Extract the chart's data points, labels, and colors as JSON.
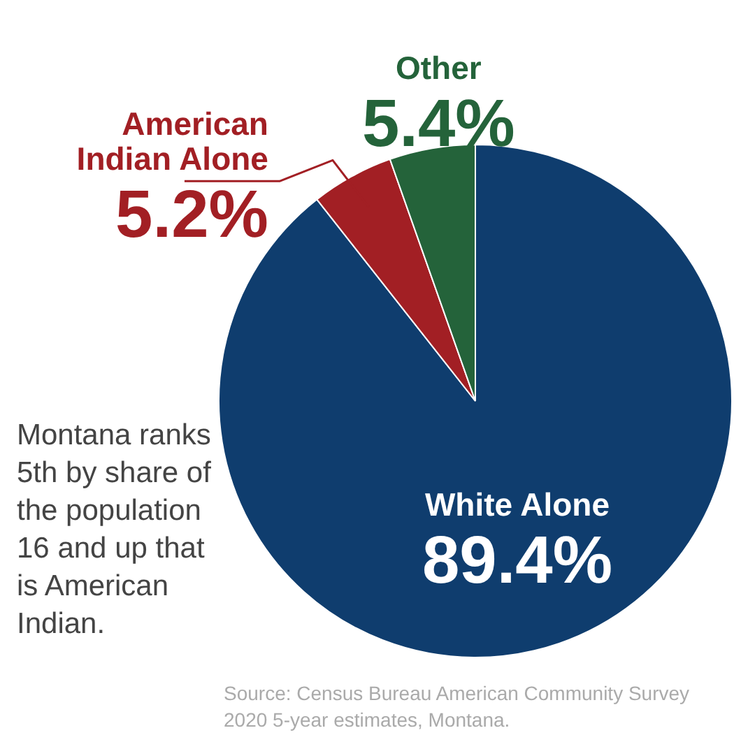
{
  "chart_data": {
    "type": "pie",
    "categories": [
      "White Alone",
      "American Indian Alone",
      "Other"
    ],
    "values": [
      89.4,
      5.2,
      5.4
    ],
    "colors": [
      "#0f3d6e",
      "#a21f24",
      "#24633a"
    ],
    "value_labels": [
      "89.4%",
      "5.2%",
      "5.4%"
    ],
    "legend": false,
    "annotations": [
      "Montana ranks 5th by share of the population 16 and up that is American Indian.",
      "Source: Census Bureau American Community Survey 2020 5-year estimates, Montana."
    ]
  }
}
